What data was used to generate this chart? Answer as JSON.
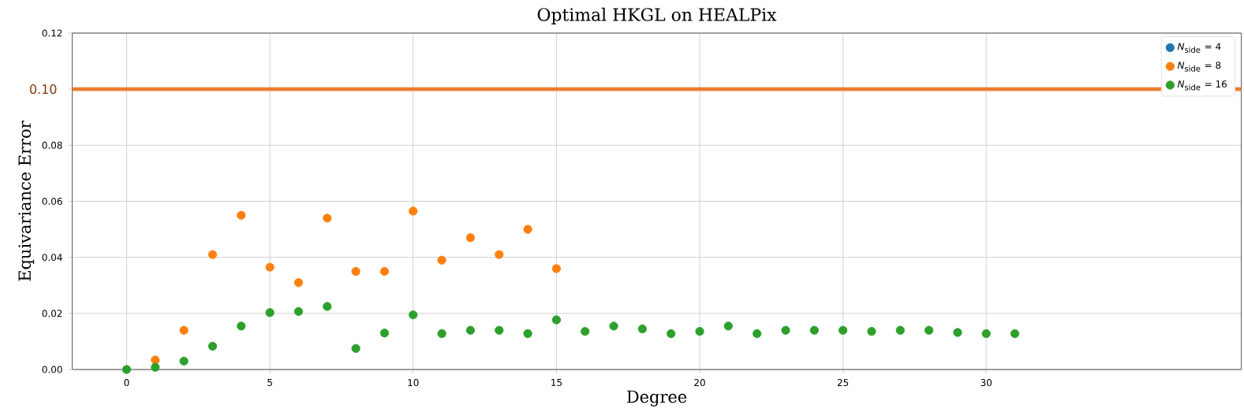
{
  "chart_data": {
    "type": "scatter",
    "title": "Optimal HKGL on HEALPix",
    "xlabel": "Degree",
    "ylabel": "Equivariance Error",
    "x": [
      0,
      1,
      2,
      3,
      4,
      5,
      6,
      7,
      8,
      9,
      10,
      11,
      12,
      13,
      14,
      15,
      16,
      17,
      18,
      19,
      20,
      21,
      22,
      23,
      24,
      25,
      26,
      27,
      28,
      29,
      30,
      31
    ],
    "series": [
      {
        "name": "*N*$_{side}$ = 4",
        "color": "#1f77b4",
        "values": [
          null,
          null,
          null,
          null,
          null,
          null,
          null,
          null,
          null,
          null,
          null,
          null,
          null,
          null,
          null,
          null,
          null,
          null,
          null,
          null,
          null,
          null,
          null,
          null,
          null,
          null,
          null,
          null,
          null,
          null,
          null,
          null
        ]
      },
      {
        "name": "*N*$_{side}$ = 8",
        "color": "#ff7f0e",
        "values": [
          null,
          0.0034,
          0.014,
          0.041,
          0.055,
          0.0365,
          0.031,
          0.054,
          0.035,
          0.035,
          0.0565,
          0.039,
          0.047,
          0.041,
          0.05,
          0.036,
          null,
          null,
          null,
          null,
          null,
          null,
          null,
          null,
          null,
          null,
          null,
          null,
          null,
          null,
          null,
          null
        ]
      },
      {
        "name": "*N*$_{side}$ = 16",
        "color": "#2ca02c",
        "values": [
          0.0,
          0.0008,
          0.003,
          0.0083,
          0.0155,
          0.0203,
          0.0207,
          0.0225,
          0.0075,
          0.013,
          0.0195,
          0.0128,
          0.014,
          0.014,
          0.0128,
          0.0177,
          0.0136,
          0.0155,
          0.0145,
          0.0128,
          0.0136,
          0.0155,
          0.0128,
          0.014,
          0.014,
          0.014,
          0.0136,
          0.014,
          0.014,
          0.0132,
          0.0128,
          0.0128
        ]
      }
    ],
    "xlim": [
      -1.9,
      38.9
    ],
    "ylim": [
      0,
      0.12
    ],
    "xticks": [
      0,
      5,
      10,
      15,
      20,
      25,
      30
    ],
    "yticks": [
      {
        "value": 0,
        "label": "0.00"
      },
      {
        "value": 0.02,
        "label": "0.02"
      },
      {
        "value": 0.04,
        "label": "0.04"
      },
      {
        "value": 0.06,
        "label": "0.06"
      },
      {
        "value": 0.08,
        "label": "0.08"
      },
      {
        "value": 0.1,
        "label": null
      },
      {
        "value": 0.12,
        "label": "0.12"
      }
    ],
    "ref_lines": [
      {
        "axis": "y",
        "value": 0.1,
        "label": "0.10",
        "color": "#ed7d31"
      }
    ],
    "grid": true,
    "legend": "top right"
  }
}
